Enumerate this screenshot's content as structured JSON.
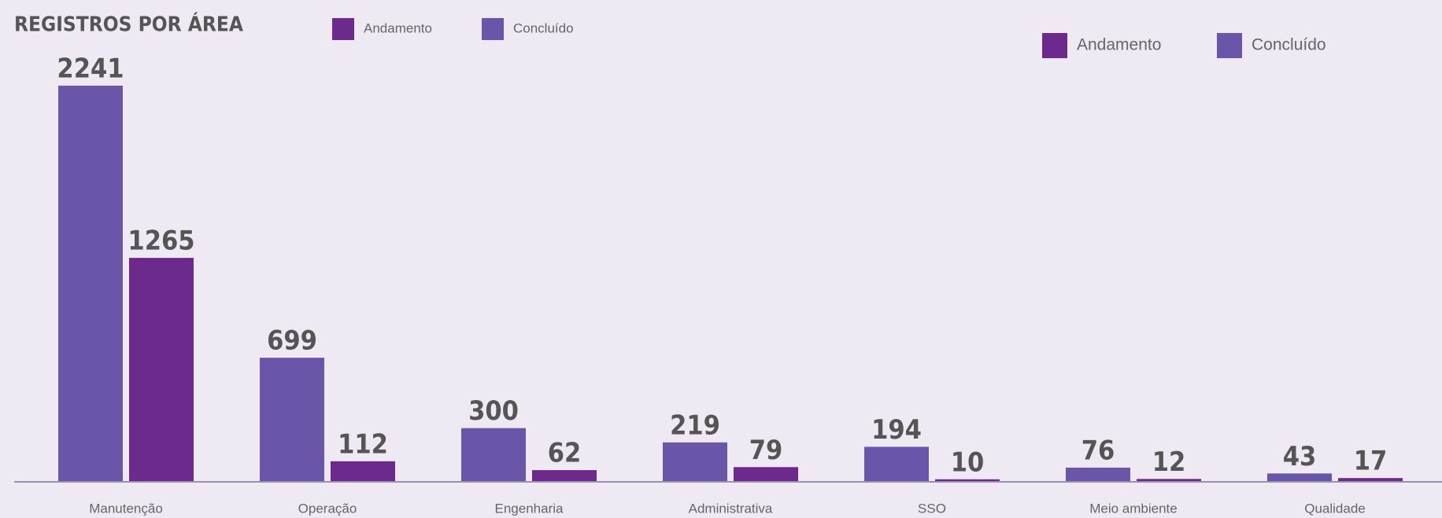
{
  "chart_data": {
    "type": "bar",
    "title": "REGISTROS POR ÁREA",
    "categories": [
      "Manutenção",
      "Operação",
      "Engenharia",
      "Administrativa",
      "SSO",
      "Meio ambiente",
      "Qualidade"
    ],
    "series": [
      {
        "name": "Concluído",
        "color": "#6a56a8",
        "values": [
          2241,
          699,
          300,
          219,
          194,
          76,
          43
        ]
      },
      {
        "name": "Andamento",
        "color": "#6b2a8c",
        "values": [
          1265,
          112,
          62,
          79,
          10,
          12,
          17
        ]
      }
    ]
  }
}
